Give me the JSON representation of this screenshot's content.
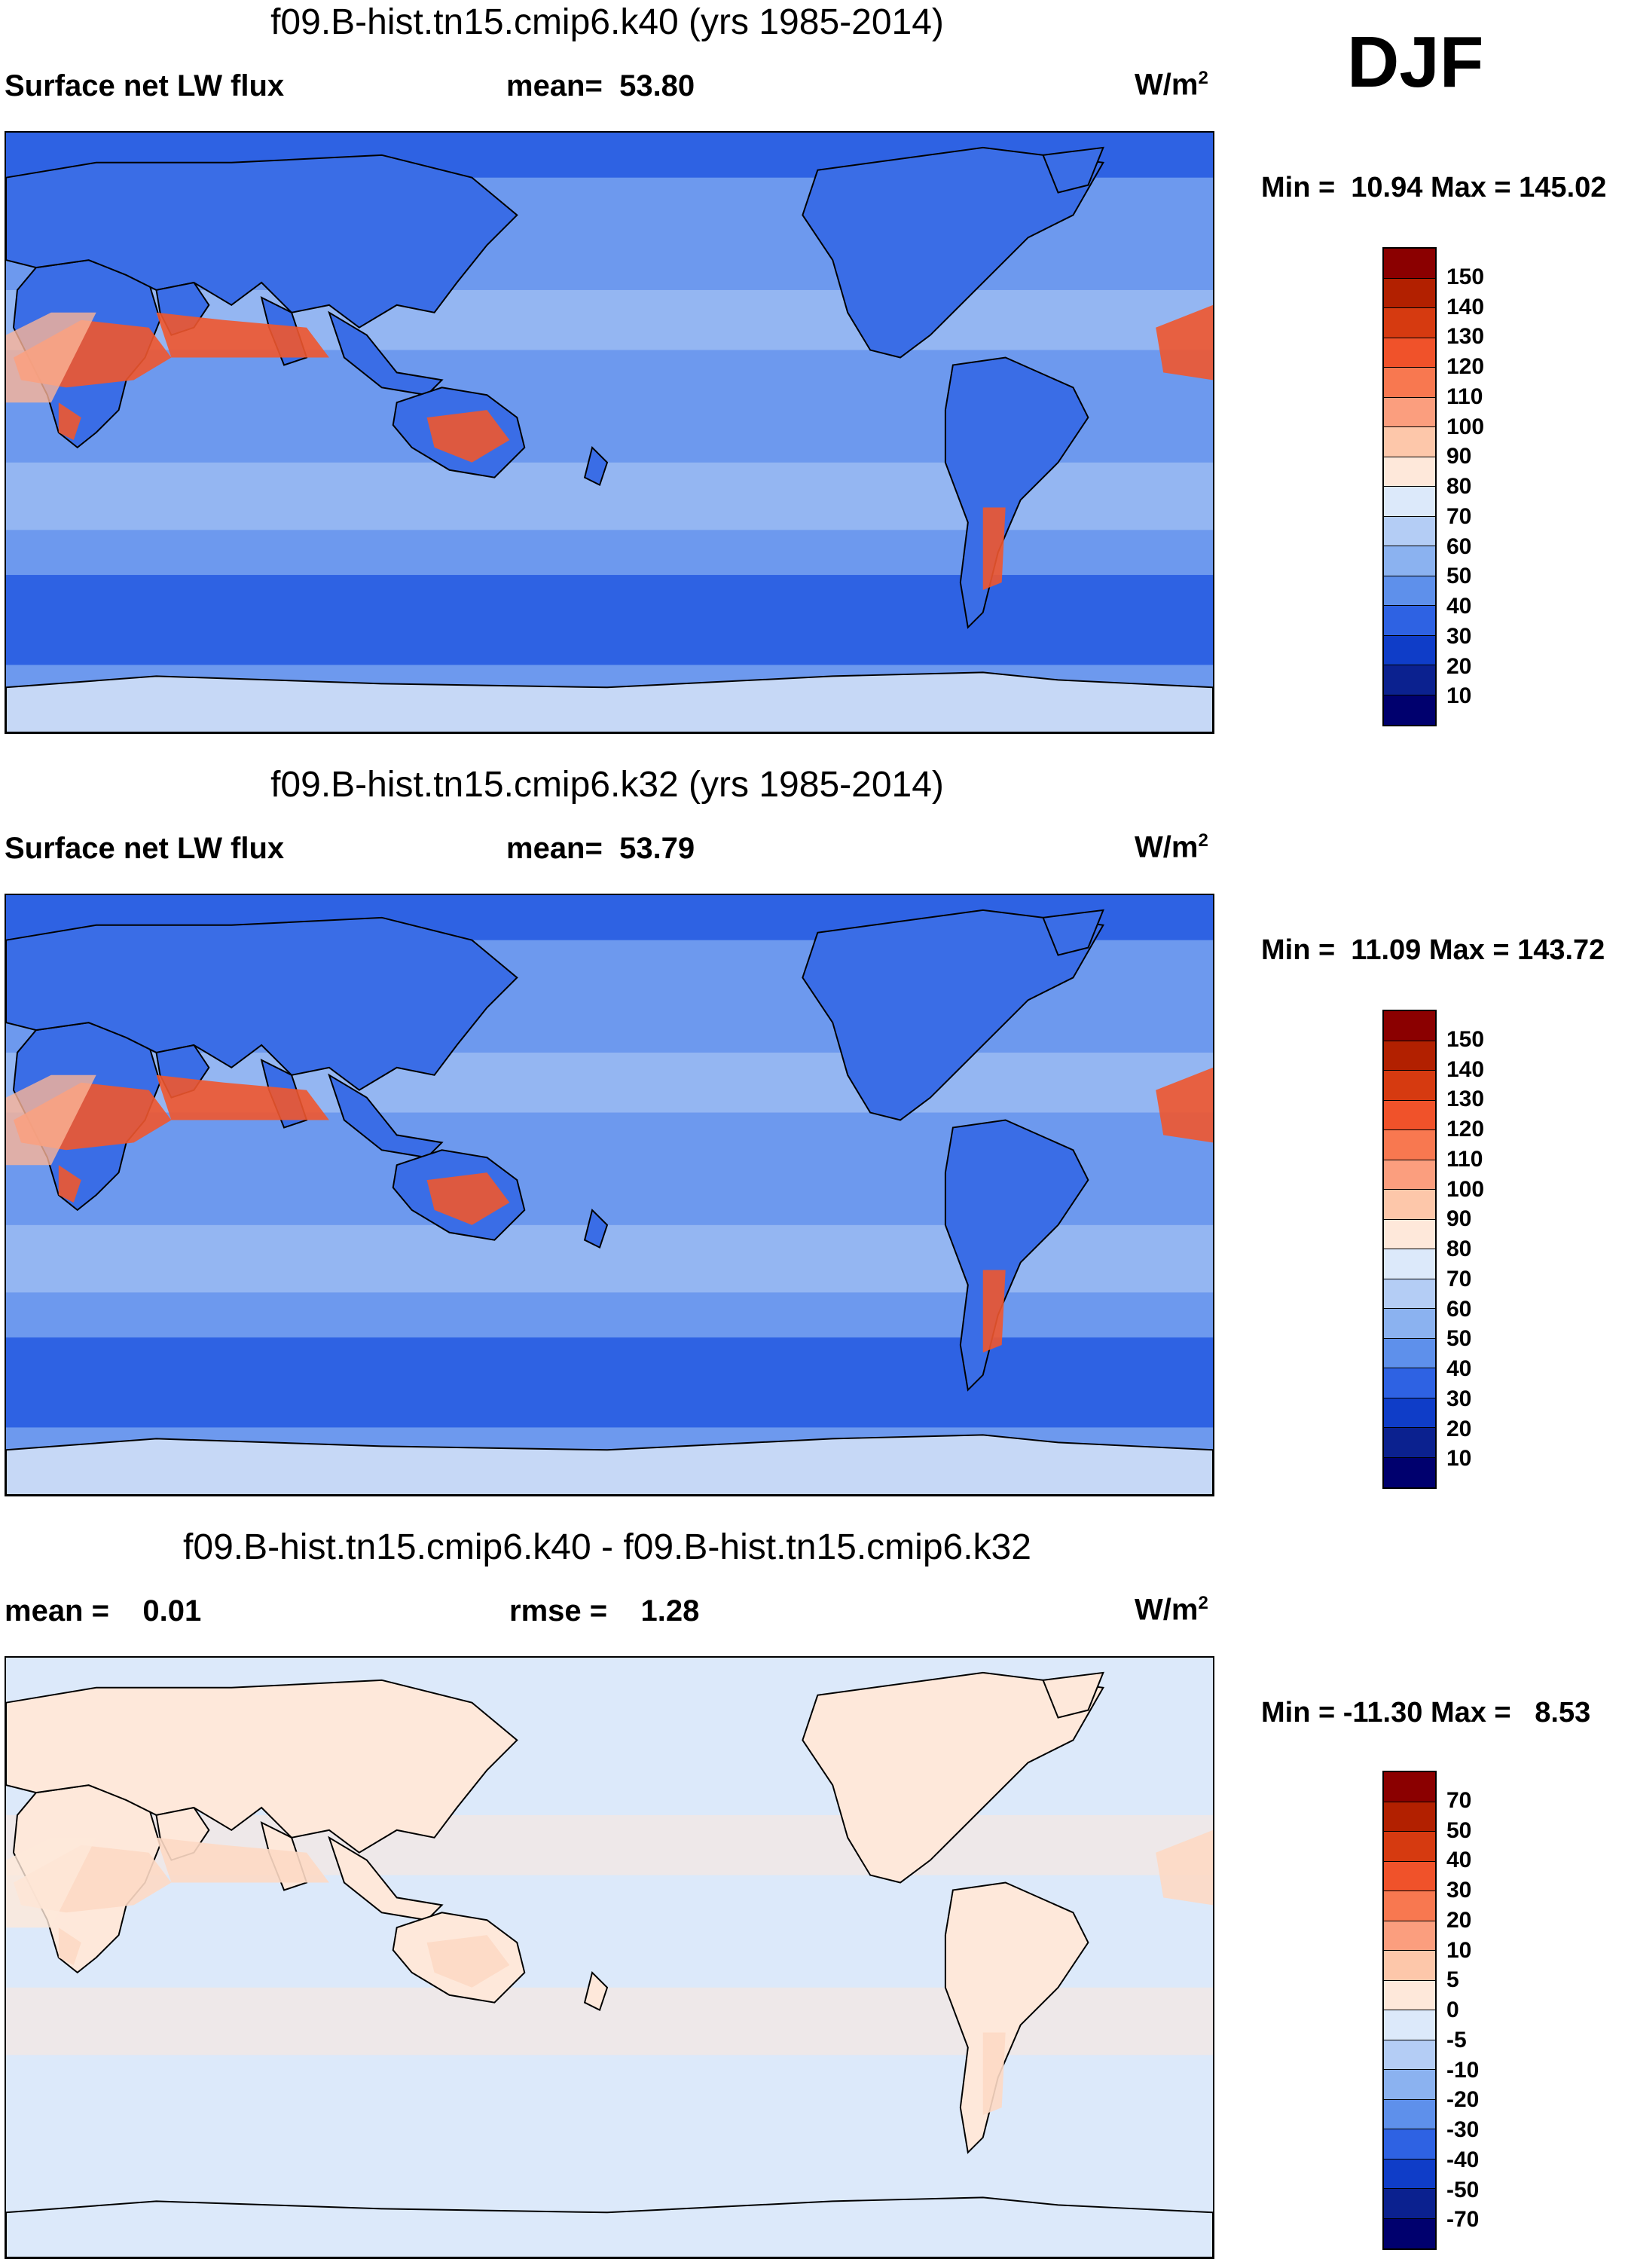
{
  "season": "DJF",
  "panels": [
    {
      "title": "f09.B-hist.tn15.cmip6.k40 (yrs 1985-2014)",
      "left_label": "Surface net LW flux",
      "center_label": "mean=  53.80",
      "units_base": "W/m",
      "units_exp": "2",
      "minmax": "Min =  10.94 Max = 145.02",
      "colorbar": {
        "labels": [
          "150",
          "140",
          "130",
          "120",
          "110",
          "100",
          "90",
          "80",
          "70",
          "60",
          "50",
          "40",
          "30",
          "20",
          "10"
        ],
        "colors": [
          "#8b0000",
          "#b22000",
          "#d63a10",
          "#f0522a",
          "#f87850",
          "#fb9e7e",
          "#fdc7aa",
          "#fee8da",
          "#dce9fa",
          "#b4cdf5",
          "#8bb2f0",
          "#5e90eb",
          "#2e62e3",
          "#0f3dc8",
          "#0b218f",
          "#00006e"
        ]
      },
      "map_colors": {
        "ocean": "#6d99ee",
        "deep": "#2e62e3",
        "land": "#3a6de6",
        "hot": "#f0562e",
        "warm": "#fbb496",
        "light": "#b4cdf5",
        "ice": "#c6d8f6"
      }
    },
    {
      "title": "f09.B-hist.tn15.cmip6.k32 (yrs 1985-2014)",
      "left_label": "Surface net LW flux",
      "center_label": "mean=  53.79",
      "units_base": "W/m",
      "units_exp": "2",
      "minmax": "Min =  11.09 Max = 143.72",
      "colorbar": {
        "labels": [
          "150",
          "140",
          "130",
          "120",
          "110",
          "100",
          "90",
          "80",
          "70",
          "60",
          "50",
          "40",
          "30",
          "20",
          "10"
        ],
        "colors": [
          "#8b0000",
          "#b22000",
          "#d63a10",
          "#f0522a",
          "#f87850",
          "#fb9e7e",
          "#fdc7aa",
          "#fee8da",
          "#dce9fa",
          "#b4cdf5",
          "#8bb2f0",
          "#5e90eb",
          "#2e62e3",
          "#0f3dc8",
          "#0b218f",
          "#00006e"
        ]
      },
      "map_colors": {
        "ocean": "#6d99ee",
        "deep": "#2e62e3",
        "land": "#3a6de6",
        "hot": "#f0562e",
        "warm": "#fbb496",
        "light": "#b4cdf5",
        "ice": "#c6d8f6"
      }
    },
    {
      "title": "f09.B-hist.tn15.cmip6.k40 - f09.B-hist.tn15.cmip6.k32",
      "left_label": "mean =    0.01",
      "center_label": "rmse =    1.28",
      "units_base": "W/m",
      "units_exp": "2",
      "minmax": "Min = -11.30 Max =   8.53",
      "colorbar": {
        "labels": [
          "70",
          "50",
          "40",
          "30",
          "20",
          "10",
          "5",
          "0",
          "-5",
          "-10",
          "-20",
          "-30",
          "-40",
          "-50",
          "-70"
        ],
        "colors": [
          "#8b0000",
          "#b22000",
          "#d63a10",
          "#f0522a",
          "#f87850",
          "#fb9e7e",
          "#fdc7aa",
          "#fee8da",
          "#dce9fa",
          "#b4cdf5",
          "#8bb2f0",
          "#5e90eb",
          "#2e62e3",
          "#0f3dc8",
          "#0b218f",
          "#00006e"
        ]
      },
      "map_colors": {
        "ocean": "#dce9fa",
        "deep": "#dce9fa",
        "land": "#fee8da",
        "hot": "#fdd9c4",
        "warm": "#fee8da",
        "light": "#fee8da",
        "ice": "#dce9fa"
      }
    }
  ]
}
